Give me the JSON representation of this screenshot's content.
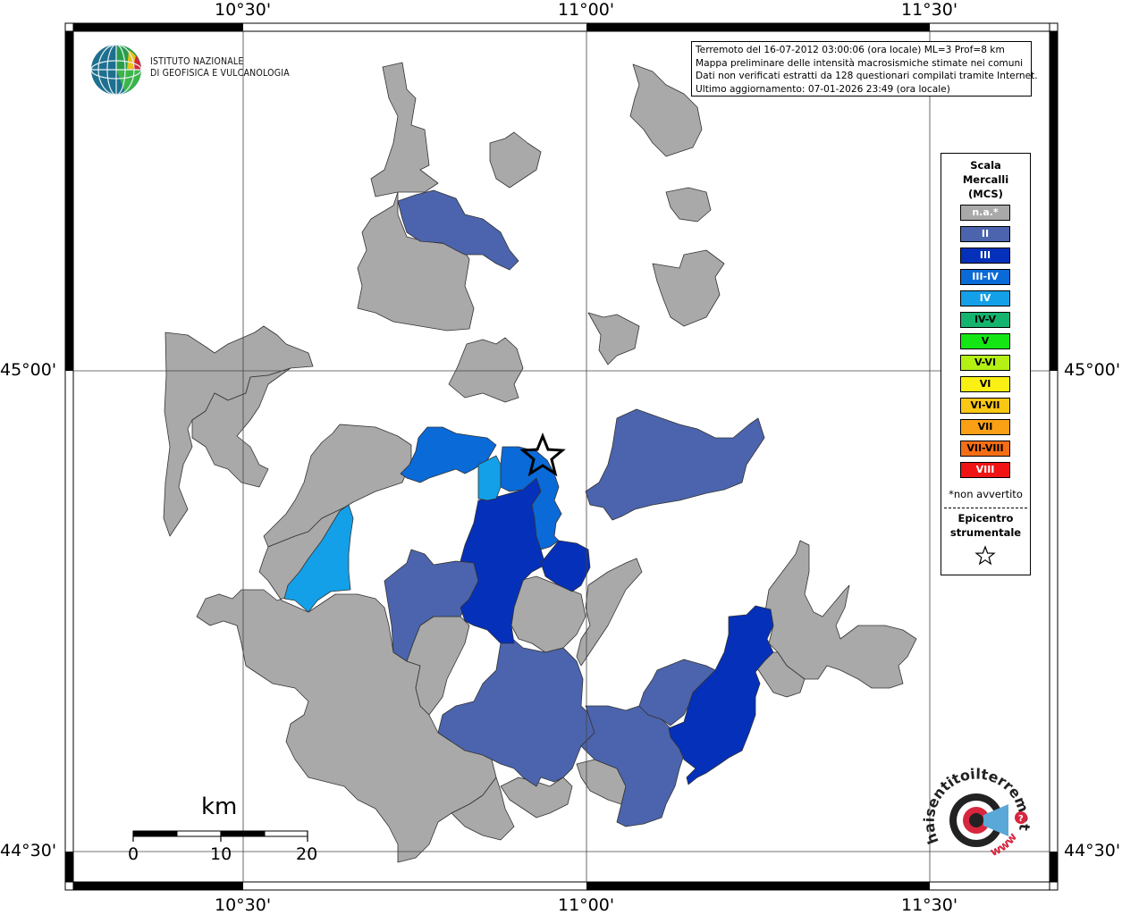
{
  "axes": {
    "top_labels": [
      "10°30'",
      "11°00'",
      "11°30'"
    ],
    "bottom_labels": [
      "10°30'",
      "11°00'",
      "11°30'"
    ],
    "left_labels": [
      "45°00'",
      "44°30'"
    ],
    "right_labels": [
      "45°00'",
      "44°30'"
    ]
  },
  "institute": {
    "line1": "ISTITUTO NAZIONALE",
    "line2": "DI GEOFISICA E VULCANOLOGIA"
  },
  "info": {
    "line1": "Terremoto del 16-07-2012 03:00:06 (ora locale) ML=3 Prof=8 km",
    "line2": "Mappa preliminare delle intensità macrosismiche stimate nei comuni",
    "line3": "Dati non verificati estratti da 128 questionari compilati tramite Internet.",
    "line4": "Ultimo aggiornamento: 07-01-2026 23:49 (ora locale)"
  },
  "legend": {
    "title1": "Scala",
    "title2": "Mercalli",
    "title3": "(MCS)",
    "items": [
      {
        "label": "n.a.*",
        "color": "#a9a9a9",
        "text_color": "#ffffff"
      },
      {
        "label": "II",
        "color": "#4b64ad",
        "text_color": "#ffffff"
      },
      {
        "label": "III",
        "color": "#0530b9",
        "text_color": "#ffffff"
      },
      {
        "label": "III-IV",
        "color": "#0a6ad8",
        "text_color": "#ffffff"
      },
      {
        "label": "IV",
        "color": "#14a0e8",
        "text_color": "#ffffff"
      },
      {
        "label": "IV-V",
        "color": "#14b46e",
        "text_color": "#000000"
      },
      {
        "label": "V",
        "color": "#14e614",
        "text_color": "#000000"
      },
      {
        "label": "V-VI",
        "color": "#b4f014",
        "text_color": "#000000"
      },
      {
        "label": "VI",
        "color": "#faf014",
        "text_color": "#000000"
      },
      {
        "label": "VI-VII",
        "color": "#fac814",
        "text_color": "#000000"
      },
      {
        "label": "VII",
        "color": "#faa014",
        "text_color": "#000000"
      },
      {
        "label": "VII-VIII",
        "color": "#f56e14",
        "text_color": "#000000"
      },
      {
        "label": "VIII",
        "color": "#f01414",
        "text_color": "#ffffff"
      }
    ],
    "note": "*non avvertito",
    "epicentre1": "Epicentro",
    "epicentre2": "strumentale"
  },
  "scale_bar": {
    "unit": "km",
    "ticks": [
      "0",
      "10",
      "20"
    ]
  },
  "logo_text": {
    "hsit": "haisentitoilterremoto.it",
    "www": "www."
  },
  "municipality_colors": {
    "na": "#a9a9a9",
    "II": "#4b64ad",
    "III": "#0530b9",
    "III-IV": "#0a6ad8",
    "IV": "#14a0e8"
  }
}
